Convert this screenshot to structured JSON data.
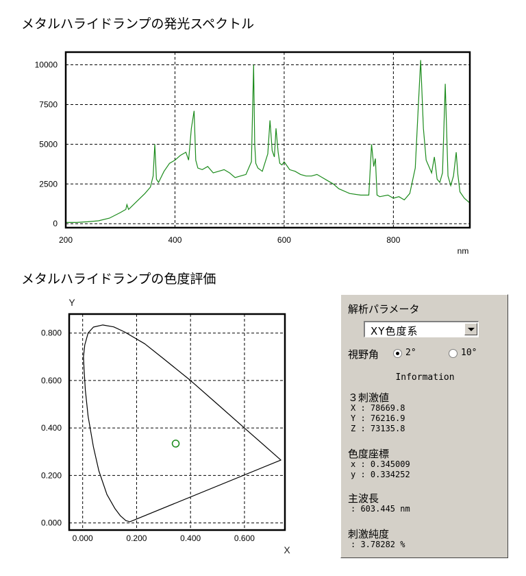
{
  "titles": {
    "spectrum": "メタルハライドランプの発光スペクトル",
    "chromaticity": "メタルハライドランプの色度評価"
  },
  "chart_data": [
    {
      "type": "line",
      "title": "メタルハライドランプの発光スペクトル",
      "xlabel": "nm",
      "ylabel": "",
      "xlim": [
        200,
        940
      ],
      "ylim": [
        -250,
        10800
      ],
      "xticks": [
        200,
        400,
        600,
        800
      ],
      "xtick_labels": [
        "200",
        "400",
        "600",
        "800"
      ],
      "yticks": [
        0,
        2500,
        5000,
        7500,
        10000
      ],
      "ytick_labels": [
        "0",
        "2500",
        "5000",
        "7500",
        "10000"
      ],
      "grid": true,
      "line_color": "#1a8a1a",
      "series": [
        {
          "x": [
            200,
            220,
            240,
            260,
            280,
            300,
            310,
            312,
            315,
            330,
            345,
            355,
            360,
            363,
            366,
            370,
            380,
            390,
            400,
            410,
            420,
            425,
            430,
            435,
            438,
            442,
            450,
            460,
            470,
            480,
            490,
            500,
            510,
            520,
            530,
            540,
            544,
            546,
            548,
            552,
            560,
            570,
            574,
            578,
            582,
            585,
            589,
            592,
            596,
            600,
            610,
            620,
            630,
            640,
            650,
            660,
            670,
            680,
            690,
            700,
            720,
            740,
            755,
            760,
            764,
            767,
            770,
            775,
            790,
            800,
            810,
            820,
            830,
            840,
            845,
            850,
            855,
            860,
            870,
            875,
            880,
            885,
            890,
            895,
            900,
            905,
            910,
            915,
            918,
            922,
            930,
            940
          ],
          "y": [
            80,
            80,
            120,
            180,
            350,
            700,
            900,
            1200,
            900,
            1400,
            1900,
            2300,
            3000,
            5000,
            2800,
            2600,
            3300,
            3800,
            4000,
            4300,
            4500,
            4000,
            6000,
            7100,
            4000,
            3500,
            3400,
            3600,
            3200,
            3300,
            3400,
            3200,
            2900,
            3000,
            3100,
            3900,
            10000,
            5000,
            3800,
            3500,
            3300,
            4400,
            6500,
            4600,
            4200,
            6000,
            4500,
            3800,
            3700,
            3900,
            3400,
            3300,
            3100,
            3000,
            3000,
            3100,
            2900,
            2700,
            2500,
            2200,
            1900,
            1800,
            1800,
            5000,
            3600,
            4100,
            1800,
            1700,
            1800,
            1600,
            1700,
            1500,
            1900,
            3500,
            7000,
            10300,
            6000,
            4000,
            3200,
            4200,
            2800,
            2600,
            3200,
            8800,
            3000,
            2400,
            3000,
            4500,
            3100,
            2000,
            1600,
            1300
          ]
        }
      ]
    },
    {
      "type": "scatter",
      "title": "メタルハライドランプの色度評価",
      "xlabel": "X",
      "ylabel": "Y",
      "xlim": [
        -0.05,
        0.75
      ],
      "ylim": [
        -0.03,
        0.88
      ],
      "xticks": [
        0.0,
        0.2,
        0.4,
        0.6
      ],
      "xtick_labels": [
        "0.000",
        "0.200",
        "0.400",
        "0.600"
      ],
      "yticks": [
        0.0,
        0.2,
        0.4,
        0.6,
        0.8
      ],
      "ytick_labels": [
        "0.000",
        "0.200",
        "0.400",
        "0.600",
        "0.800"
      ],
      "grid": true,
      "series": [
        {
          "type": "line",
          "x": [
            0.175,
            0.16,
            0.14,
            0.12,
            0.09,
            0.06,
            0.04,
            0.02,
            0.01,
            0.005,
            0.003,
            0.008,
            0.02,
            0.04,
            0.074,
            0.115,
            0.155,
            0.23,
            0.3,
            0.4,
            0.5,
            0.6,
            0.735,
            0.175
          ],
          "y": [
            0.005,
            0.01,
            0.03,
            0.06,
            0.12,
            0.22,
            0.32,
            0.45,
            0.56,
            0.65,
            0.7,
            0.75,
            0.8,
            0.825,
            0.834,
            0.826,
            0.805,
            0.755,
            0.692,
            0.6,
            0.5,
            0.4,
            0.265,
            0.005
          ]
        },
        {
          "type": "point",
          "color": "#1a8a1a",
          "x": [
            0.345009
          ],
          "y": [
            0.334252
          ]
        }
      ]
    }
  ],
  "panel": {
    "title": "解析パラメータ",
    "select_value": "XY色度系",
    "view_angle_label": "視野角",
    "radio_2": "2°",
    "radio_10": "10°",
    "info_heading": "Information",
    "tristimulus": {
      "label": "３刺激値",
      "x_line": "X : 78669.8",
      "y_line": "Y : 76216.9",
      "z_line": "Z : 73135.8"
    },
    "chromaticity": {
      "label": "色度座標",
      "x_line": "x : 0.345009",
      "y_line": "y : 0.334252"
    },
    "dominant_wavelength": {
      "label": "主波長",
      "value": ": 603.445 nm"
    },
    "purity": {
      "label": "刺激純度",
      "value": ": 3.78282 %"
    }
  }
}
